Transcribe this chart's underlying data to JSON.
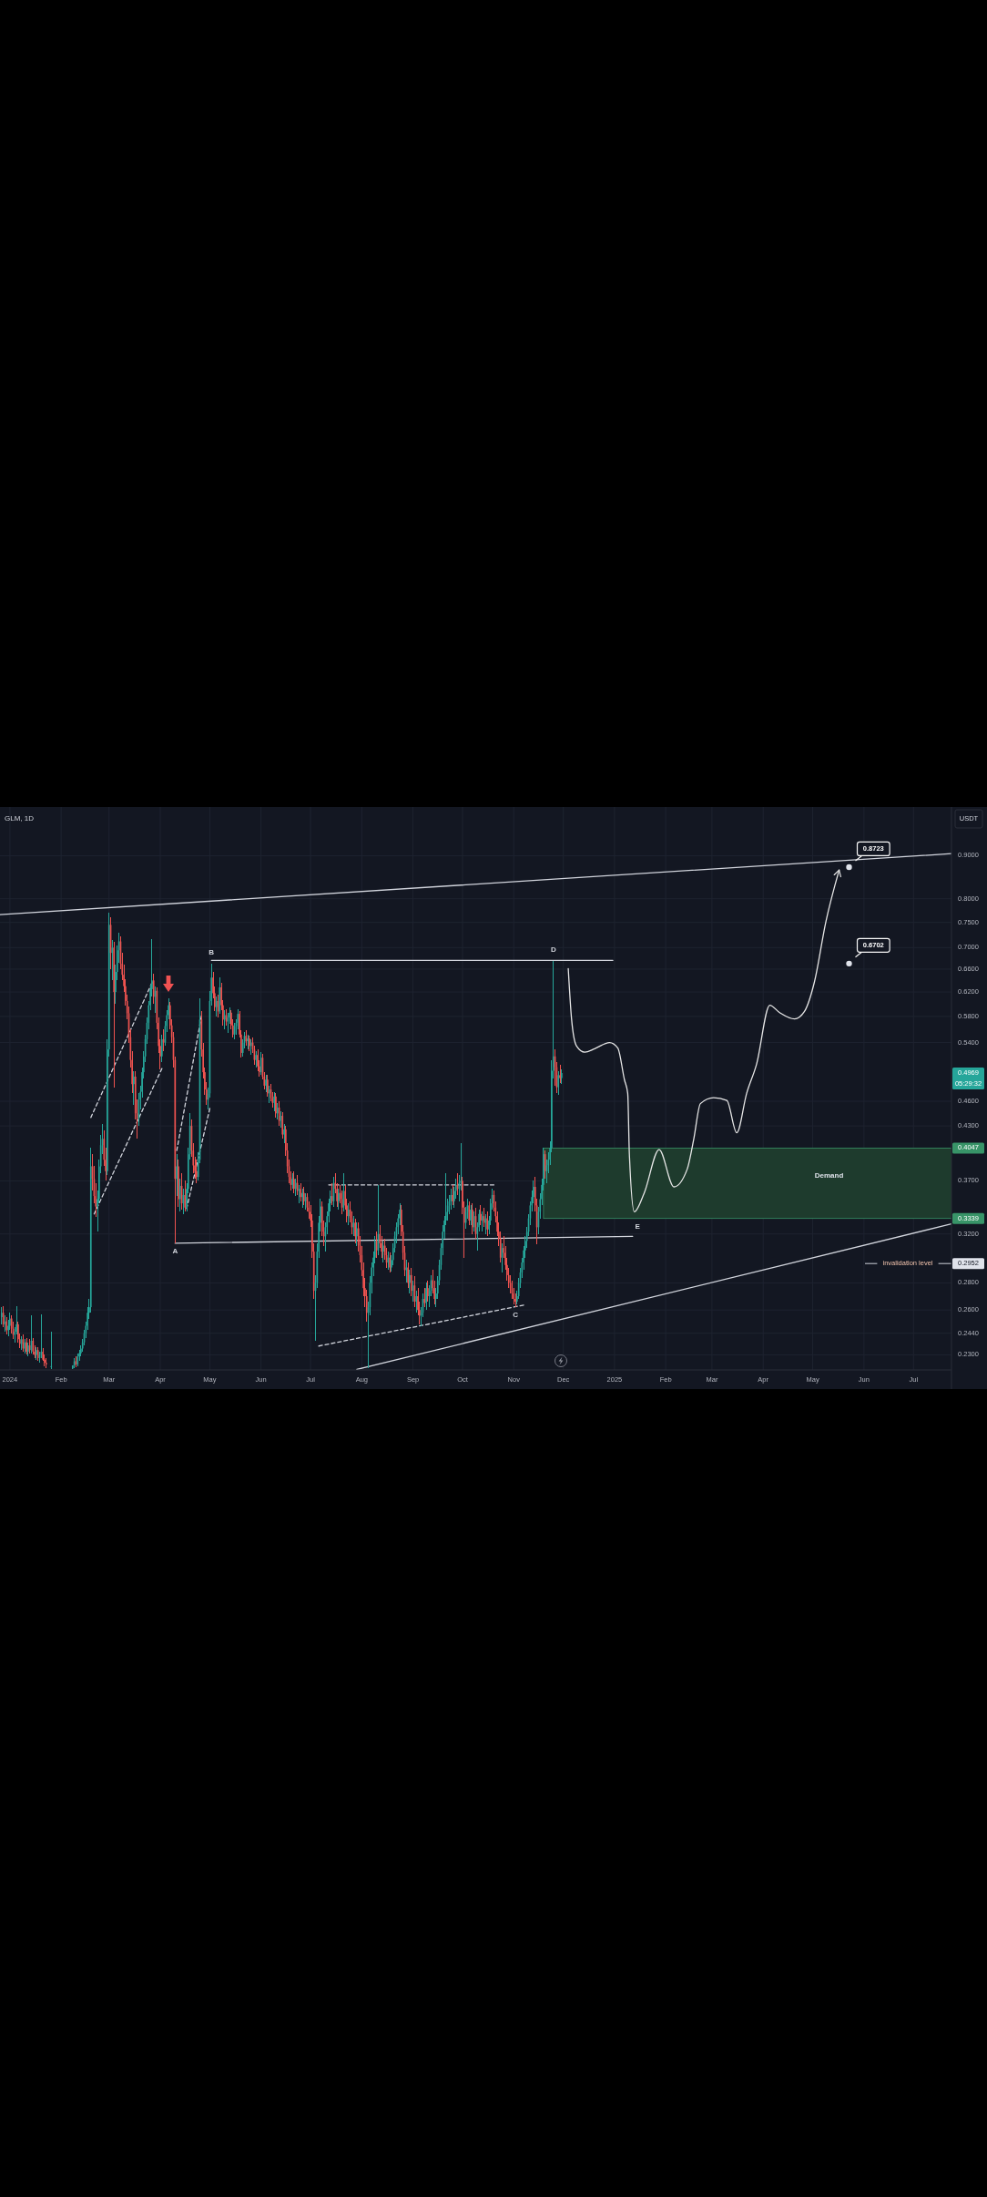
{
  "chart_data": {
    "type": "candlestick",
    "title": "GLM, 1D",
    "ylabel": "USDT",
    "x": [
      "2023-12-27",
      "2023-12-28",
      "2023-12-29",
      "2023-12-30",
      "2023-12-31",
      "2024-01-01",
      "2024-01-02",
      "2024-01-03",
      "2024-01-04",
      "2024-01-05",
      "2024-01-06",
      "2024-01-07",
      "2024-01-08",
      "2024-01-09",
      "2024-01-10",
      "2024-01-11",
      "2024-01-12",
      "2024-01-13",
      "2024-01-14",
      "2024-01-15",
      "2024-01-16",
      "2024-01-17",
      "2024-01-18",
      "2024-01-19",
      "2024-01-20",
      "2024-01-21",
      "2024-01-22",
      "2024-01-23",
      "2024-01-26",
      "2024-02-08",
      "2024-02-09",
      "2024-02-10",
      "2024-02-11",
      "2024-02-12",
      "2024-02-13",
      "2024-02-14",
      "2024-02-15",
      "2024-02-16",
      "2024-02-17",
      "2024-02-18",
      "2024-02-19",
      "2024-02-20",
      "2024-02-21",
      "2024-02-22",
      "2024-02-23",
      "2024-02-24",
      "2024-02-25",
      "2024-02-26",
      "2024-02-27",
      "2024-02-28",
      "2024-02-29",
      "2024-03-01",
      "2024-03-02",
      "2024-03-03",
      "2024-03-04",
      "2024-03-05",
      "2024-03-06",
      "2024-03-07",
      "2024-03-08",
      "2024-03-09",
      "2024-03-10",
      "2024-03-11",
      "2024-03-12",
      "2024-03-13",
      "2024-03-14",
      "2024-03-15",
      "2024-03-16",
      "2024-03-17",
      "2024-03-18",
      "2024-03-19",
      "2024-03-20",
      "2024-03-21",
      "2024-03-22",
      "2024-03-23",
      "2024-03-24",
      "2024-03-25",
      "2024-03-26",
      "2024-03-27",
      "2024-03-28",
      "2024-03-29",
      "2024-03-30",
      "2024-03-31",
      "2024-04-01",
      "2024-04-02",
      "2024-04-03",
      "2024-04-04",
      "2024-04-05",
      "2024-04-06",
      "2024-04-07",
      "2024-04-08",
      "2024-04-09",
      "2024-04-10",
      "2024-04-11",
      "2024-04-12",
      "2024-04-13",
      "2024-04-14",
      "2024-04-15",
      "2024-04-16",
      "2024-04-17",
      "2024-04-18",
      "2024-04-19",
      "2024-04-20",
      "2024-04-21",
      "2024-04-22",
      "2024-04-23",
      "2024-04-24",
      "2024-04-25",
      "2024-04-26",
      "2024-04-27",
      "2024-04-28",
      "2024-04-29",
      "2024-04-30",
      "2024-05-01",
      "2024-05-02",
      "2024-05-03",
      "2024-05-04",
      "2024-05-05",
      "2024-05-06",
      "2024-05-07",
      "2024-05-08",
      "2024-05-09",
      "2024-05-10",
      "2024-05-11",
      "2024-05-12",
      "2024-05-13",
      "2024-05-14",
      "2024-05-15",
      "2024-05-16",
      "2024-05-17",
      "2024-05-18",
      "2024-05-19",
      "2024-05-20",
      "2024-05-21",
      "2024-05-22",
      "2024-05-23",
      "2024-05-24",
      "2024-05-25",
      "2024-05-26",
      "2024-05-27",
      "2024-05-28",
      "2024-05-29",
      "2024-05-30",
      "2024-05-31",
      "2024-06-01",
      "2024-06-02",
      "2024-06-03",
      "2024-06-04",
      "2024-06-05",
      "2024-06-06",
      "2024-06-07",
      "2024-06-08",
      "2024-06-09",
      "2024-06-10",
      "2024-06-11",
      "2024-06-12",
      "2024-06-13",
      "2024-06-14",
      "2024-06-15",
      "2024-06-16",
      "2024-06-17",
      "2024-06-18",
      "2024-06-19",
      "2024-06-20",
      "2024-06-21",
      "2024-06-22",
      "2024-06-23",
      "2024-06-24",
      "2024-06-25",
      "2024-06-26",
      "2024-06-27",
      "2024-06-28",
      "2024-06-29",
      "2024-06-30",
      "2024-07-01",
      "2024-07-02",
      "2024-07-03",
      "2024-07-04",
      "2024-07-05",
      "2024-07-06",
      "2024-07-07",
      "2024-07-08",
      "2024-07-09",
      "2024-07-10",
      "2024-07-11",
      "2024-07-12",
      "2024-07-13",
      "2024-07-14",
      "2024-07-15",
      "2024-07-16",
      "2024-07-17",
      "2024-07-18",
      "2024-07-19",
      "2024-07-20",
      "2024-07-21",
      "2024-07-22",
      "2024-07-23",
      "2024-07-24",
      "2024-07-25",
      "2024-07-26",
      "2024-07-27",
      "2024-07-28",
      "2024-07-29",
      "2024-07-30",
      "2024-07-31",
      "2024-08-01",
      "2024-08-02",
      "2024-08-03",
      "2024-08-04",
      "2024-08-05",
      "2024-08-06",
      "2024-08-07",
      "2024-08-08",
      "2024-08-09",
      "2024-08-10",
      "2024-08-11",
      "2024-08-12",
      "2024-08-13",
      "2024-08-14",
      "2024-08-15",
      "2024-08-16",
      "2024-08-17",
      "2024-08-18",
      "2024-08-19",
      "2024-08-20",
      "2024-08-21",
      "2024-08-22",
      "2024-08-23",
      "2024-08-24",
      "2024-08-25",
      "2024-08-26",
      "2024-08-27",
      "2024-08-28",
      "2024-08-29",
      "2024-08-30",
      "2024-08-31",
      "2024-09-01",
      "2024-09-02",
      "2024-09-03",
      "2024-09-04",
      "2024-09-05",
      "2024-09-06",
      "2024-09-07",
      "2024-09-08",
      "2024-09-09",
      "2024-09-10",
      "2024-09-11",
      "2024-09-12",
      "2024-09-13",
      "2024-09-14",
      "2024-09-15",
      "2024-09-16",
      "2024-09-17",
      "2024-09-18",
      "2024-09-19",
      "2024-09-20",
      "2024-09-21",
      "2024-09-22",
      "2024-09-23",
      "2024-09-24",
      "2024-09-25",
      "2024-09-26",
      "2024-09-27",
      "2024-09-28",
      "2024-09-29",
      "2024-09-30",
      "2024-10-01",
      "2024-10-02",
      "2024-10-03",
      "2024-10-04",
      "2024-10-05",
      "2024-10-06",
      "2024-10-07",
      "2024-10-08",
      "2024-10-09",
      "2024-10-10",
      "2024-10-11",
      "2024-10-12",
      "2024-10-13",
      "2024-10-14",
      "2024-10-15",
      "2024-10-16",
      "2024-10-17",
      "2024-10-18",
      "2024-10-19",
      "2024-10-20",
      "2024-10-21",
      "2024-10-22",
      "2024-10-23",
      "2024-10-24",
      "2024-10-25",
      "2024-10-26",
      "2024-10-27",
      "2024-10-28",
      "2024-10-29",
      "2024-10-30",
      "2024-10-31",
      "2024-11-01",
      "2024-11-02",
      "2024-11-03",
      "2024-11-04",
      "2024-11-05",
      "2024-11-06",
      "2024-11-07",
      "2024-11-08",
      "2024-11-09",
      "2024-11-10",
      "2024-11-11",
      "2024-11-12",
      "2024-11-13",
      "2024-11-14",
      "2024-11-15",
      "2024-11-16",
      "2024-11-17",
      "2024-11-18",
      "2024-11-19",
      "2024-11-20",
      "2024-11-21",
      "2024-11-22",
      "2024-11-23",
      "2024-11-24",
      "2024-11-25",
      "2024-11-26",
      "2024-11-27",
      "2024-11-28",
      "2024-11-29",
      "2024-11-30"
    ],
    "ohlc": [
      [
        0.255,
        0.262,
        0.25,
        0.258
      ],
      [
        0.258,
        0.263,
        0.248,
        0.25
      ],
      [
        0.25,
        0.256,
        0.245,
        0.252
      ],
      [
        0.252,
        0.255,
        0.243,
        0.246
      ],
      [
        0.246,
        0.253,
        0.242,
        0.249
      ],
      [
        0.249,
        0.258,
        0.246,
        0.254
      ],
      [
        0.254,
        0.256,
        0.244,
        0.247
      ],
      [
        0.247,
        0.252,
        0.24,
        0.243
      ],
      [
        0.243,
        0.248,
        0.238,
        0.245
      ],
      [
        0.245,
        0.263,
        0.243,
        0.25
      ],
      [
        0.25,
        0.252,
        0.238,
        0.24
      ],
      [
        0.24,
        0.244,
        0.234,
        0.237
      ],
      [
        0.237,
        0.242,
        0.233,
        0.24
      ],
      [
        0.24,
        0.243,
        0.232,
        0.234
      ],
      [
        0.234,
        0.24,
        0.231,
        0.238
      ],
      [
        0.238,
        0.241,
        0.23,
        0.232
      ],
      [
        0.232,
        0.238,
        0.229,
        0.236
      ],
      [
        0.236,
        0.24,
        0.231,
        0.233
      ],
      [
        0.233,
        0.256,
        0.231,
        0.239
      ],
      [
        0.239,
        0.241,
        0.23,
        0.232
      ],
      [
        0.232,
        0.236,
        0.228,
        0.23
      ],
      [
        0.23,
        0.235,
        0.227,
        0.233
      ],
      [
        0.233,
        0.235,
        0.226,
        0.228
      ],
      [
        0.228,
        0.232,
        0.225,
        0.23
      ],
      [
        0.23,
        0.257,
        0.228,
        0.232
      ],
      [
        0.232,
        0.234,
        0.226,
        0.227
      ],
      [
        0.227,
        0.23,
        0.223,
        0.225
      ],
      [
        0.225,
        0.228,
        0.222,
        0.224
      ],
      [
        0.2225,
        0.245,
        0.2215,
        0.223
      ],
      [
        0.2215,
        0.2235,
        0.2215,
        0.2235
      ],
      [
        0.2235,
        0.228,
        0.222,
        0.226
      ],
      [
        0.226,
        0.229,
        0.2225,
        0.224
      ],
      [
        0.224,
        0.231,
        0.223,
        0.229
      ],
      [
        0.229,
        0.233,
        0.226,
        0.231
      ],
      [
        0.231,
        0.236,
        0.229,
        0.234
      ],
      [
        0.234,
        0.24,
        0.232,
        0.238
      ],
      [
        0.238,
        0.246,
        0.236,
        0.244
      ],
      [
        0.244,
        0.252,
        0.241,
        0.249
      ],
      [
        0.249,
        0.262,
        0.246,
        0.258
      ],
      [
        0.258,
        0.268,
        0.254,
        0.262
      ],
      [
        0.262,
        0.405,
        0.258,
        0.385
      ],
      [
        0.385,
        0.398,
        0.36,
        0.372
      ],
      [
        0.372,
        0.385,
        0.348,
        0.355
      ],
      [
        0.355,
        0.368,
        0.335,
        0.345
      ],
      [
        0.345,
        0.36,
        0.322,
        0.352
      ],
      [
        0.352,
        0.392,
        0.348,
        0.385
      ],
      [
        0.385,
        0.42,
        0.378,
        0.408
      ],
      [
        0.408,
        0.432,
        0.398,
        0.415
      ],
      [
        0.415,
        0.425,
        0.385,
        0.392
      ],
      [
        0.392,
        0.405,
        0.37,
        0.38
      ],
      [
        0.38,
        0.545,
        0.376,
        0.53
      ],
      [
        0.53,
        0.771,
        0.52,
        0.745
      ],
      [
        0.745,
        0.76,
        0.66,
        0.69
      ],
      [
        0.69,
        0.715,
        0.64,
        0.7
      ],
      [
        0.7,
        0.712,
        0.477,
        0.62
      ],
      [
        0.62,
        0.668,
        0.6,
        0.655
      ],
      [
        0.655,
        0.705,
        0.64,
        0.695
      ],
      [
        0.695,
        0.73,
        0.672,
        0.712
      ],
      [
        0.712,
        0.722,
        0.66,
        0.67
      ],
      [
        0.67,
        0.69,
        0.64,
        0.65
      ],
      [
        0.65,
        0.668,
        0.62,
        0.63
      ],
      [
        0.63,
        0.642,
        0.598,
        0.605
      ],
      [
        0.605,
        0.615,
        0.575,
        0.585
      ],
      [
        0.585,
        0.596,
        0.54,
        0.548
      ],
      [
        0.548,
        0.56,
        0.505,
        0.515
      ],
      [
        0.515,
        0.528,
        0.47,
        0.482
      ],
      [
        0.482,
        0.5,
        0.455,
        0.492
      ],
      [
        0.492,
        0.5,
        0.438,
        0.445
      ],
      [
        0.445,
        0.462,
        0.415,
        0.438
      ],
      [
        0.438,
        0.47,
        0.43,
        0.462
      ],
      [
        0.462,
        0.48,
        0.45,
        0.472
      ],
      [
        0.472,
        0.505,
        0.465,
        0.498
      ],
      [
        0.498,
        0.528,
        0.49,
        0.52
      ],
      [
        0.52,
        0.552,
        0.512,
        0.545
      ],
      [
        0.545,
        0.578,
        0.538,
        0.57
      ],
      [
        0.57,
        0.605,
        0.56,
        0.598
      ],
      [
        0.598,
        0.632,
        0.59,
        0.625
      ],
      [
        0.625,
        0.716,
        0.612,
        0.64
      ],
      [
        0.64,
        0.652,
        0.6,
        0.612
      ],
      [
        0.612,
        0.63,
        0.585,
        0.622
      ],
      [
        0.622,
        0.628,
        0.56,
        0.57
      ],
      [
        0.57,
        0.578,
        0.525,
        0.535
      ],
      [
        0.535,
        0.545,
        0.502,
        0.52
      ],
      [
        0.52,
        0.552,
        0.512,
        0.545
      ],
      [
        0.545,
        0.56,
        0.528,
        0.54
      ],
      [
        0.54,
        0.572,
        0.535,
        0.565
      ],
      [
        0.565,
        0.59,
        0.556,
        0.582
      ],
      [
        0.582,
        0.61,
        0.575,
        0.598
      ],
      [
        0.598,
        0.604,
        0.56,
        0.566
      ],
      [
        0.566,
        0.575,
        0.54,
        0.548
      ],
      [
        0.548,
        0.556,
        0.505,
        0.515
      ],
      [
        0.515,
        0.52,
        0.312,
        0.372
      ],
      [
        0.372,
        0.398,
        0.355,
        0.385
      ],
      [
        0.385,
        0.392,
        0.345,
        0.352
      ],
      [
        0.352,
        0.372,
        0.34,
        0.365
      ],
      [
        0.365,
        0.378,
        0.342,
        0.348
      ],
      [
        0.348,
        0.362,
        0.338,
        0.356
      ],
      [
        0.356,
        0.37,
        0.34,
        0.344
      ],
      [
        0.344,
        0.368,
        0.34,
        0.362
      ],
      [
        0.362,
        0.405,
        0.358,
        0.398
      ],
      [
        0.398,
        0.445,
        0.392,
        0.43
      ],
      [
        0.43,
        0.438,
        0.395,
        0.402
      ],
      [
        0.402,
        0.41,
        0.378,
        0.386
      ],
      [
        0.386,
        0.395,
        0.372,
        0.38
      ],
      [
        0.38,
        0.392,
        0.368,
        0.374
      ],
      [
        0.374,
        0.4,
        0.37,
        0.392
      ],
      [
        0.392,
        0.61,
        0.388,
        0.575
      ],
      [
        0.575,
        0.588,
        0.52,
        0.53
      ],
      [
        0.53,
        0.54,
        0.49,
        0.498
      ],
      [
        0.498,
        0.505,
        0.468,
        0.475
      ],
      [
        0.475,
        0.485,
        0.455,
        0.462
      ],
      [
        0.462,
        0.478,
        0.45,
        0.47
      ],
      [
        0.47,
        0.622,
        0.465,
        0.605
      ],
      [
        0.605,
        0.67,
        0.598,
        0.645
      ],
      [
        0.645,
        0.655,
        0.61,
        0.618
      ],
      [
        0.618,
        0.63,
        0.588,
        0.595
      ],
      [
        0.595,
        0.612,
        0.58,
        0.605
      ],
      [
        0.605,
        0.615,
        0.578,
        0.588
      ],
      [
        0.588,
        0.645,
        0.584,
        0.628
      ],
      [
        0.628,
        0.636,
        0.59,
        0.598
      ],
      [
        0.598,
        0.606,
        0.565,
        0.575
      ],
      [
        0.575,
        0.59,
        0.56,
        0.582
      ],
      [
        0.582,
        0.592,
        0.566,
        0.572
      ],
      [
        0.572,
        0.585,
        0.555,
        0.578
      ],
      [
        0.578,
        0.594,
        0.568,
        0.586
      ],
      [
        0.586,
        0.59,
        0.56,
        0.566
      ],
      [
        0.566,
        0.575,
        0.548,
        0.552
      ],
      [
        0.552,
        0.57,
        0.545,
        0.565
      ],
      [
        0.565,
        0.575,
        0.552,
        0.57
      ],
      [
        0.57,
        0.592,
        0.56,
        0.584
      ],
      [
        0.584,
        0.588,
        0.548,
        0.552
      ],
      [
        0.552,
        0.558,
        0.518,
        0.525
      ],
      [
        0.525,
        0.545,
        0.52,
        0.54
      ],
      [
        0.54,
        0.556,
        0.532,
        0.55
      ],
      [
        0.55,
        0.558,
        0.536,
        0.542
      ],
      [
        0.542,
        0.552,
        0.53,
        0.546
      ],
      [
        0.546,
        0.55,
        0.528,
        0.535
      ],
      [
        0.535,
        0.545,
        0.522,
        0.54
      ],
      [
        0.54,
        0.548,
        0.525,
        0.53
      ],
      [
        0.53,
        0.535,
        0.508,
        0.515
      ],
      [
        0.515,
        0.528,
        0.505,
        0.522
      ],
      [
        0.522,
        0.53,
        0.5,
        0.506
      ],
      [
        0.506,
        0.515,
        0.492,
        0.498
      ],
      [
        0.498,
        0.526,
        0.494,
        0.518
      ],
      [
        0.518,
        0.524,
        0.488,
        0.492
      ],
      [
        0.492,
        0.498,
        0.475,
        0.48
      ],
      [
        0.48,
        0.495,
        0.472,
        0.488
      ],
      [
        0.488,
        0.494,
        0.466,
        0.47
      ],
      [
        0.47,
        0.48,
        0.458,
        0.475
      ],
      [
        0.475,
        0.482,
        0.46,
        0.464
      ],
      [
        0.464,
        0.472,
        0.452,
        0.458
      ],
      [
        0.458,
        0.472,
        0.448,
        0.466
      ],
      [
        0.466,
        0.47,
        0.44,
        0.445
      ],
      [
        0.445,
        0.458,
        0.438,
        0.452
      ],
      [
        0.452,
        0.46,
        0.43,
        0.436
      ],
      [
        0.436,
        0.448,
        0.428,
        0.442
      ],
      [
        0.442,
        0.446,
        0.415,
        0.42
      ],
      [
        0.42,
        0.432,
        0.41,
        0.426
      ],
      [
        0.426,
        0.43,
        0.396,
        0.402
      ],
      [
        0.402,
        0.41,
        0.378,
        0.385
      ],
      [
        0.385,
        0.392,
        0.368,
        0.374
      ],
      [
        0.374,
        0.38,
        0.36,
        0.366
      ],
      [
        0.366,
        0.378,
        0.362,
        0.372
      ],
      [
        0.372,
        0.38,
        0.358,
        0.362
      ],
      [
        0.362,
        0.372,
        0.355,
        0.368
      ],
      [
        0.368,
        0.376,
        0.356,
        0.36
      ],
      [
        0.36,
        0.366,
        0.348,
        0.362
      ],
      [
        0.362,
        0.368,
        0.35,
        0.354
      ],
      [
        0.354,
        0.362,
        0.344,
        0.358
      ],
      [
        0.358,
        0.364,
        0.346,
        0.35
      ],
      [
        0.35,
        0.358,
        0.342,
        0.354
      ],
      [
        0.354,
        0.358,
        0.34,
        0.344
      ],
      [
        0.344,
        0.35,
        0.334,
        0.34
      ],
      [
        0.34,
        0.346,
        0.326,
        0.332
      ],
      [
        0.332,
        0.338,
        0.3,
        0.305
      ],
      [
        0.305,
        0.312,
        0.268,
        0.274
      ],
      [
        0.274,
        0.286,
        0.239,
        0.28
      ],
      [
        0.28,
        0.312,
        0.276,
        0.305
      ],
      [
        0.305,
        0.336,
        0.3,
        0.33
      ],
      [
        0.33,
        0.352,
        0.322,
        0.345
      ],
      [
        0.345,
        0.35,
        0.318,
        0.322
      ],
      [
        0.322,
        0.332,
        0.31,
        0.318
      ],
      [
        0.318,
        0.33,
        0.305,
        0.326
      ],
      [
        0.326,
        0.34,
        0.32,
        0.336
      ],
      [
        0.336,
        0.352,
        0.33,
        0.348
      ],
      [
        0.348,
        0.36,
        0.34,
        0.355
      ],
      [
        0.355,
        0.368,
        0.346,
        0.35
      ],
      [
        0.35,
        0.374,
        0.345,
        0.368
      ],
      [
        0.368,
        0.378,
        0.358,
        0.362
      ],
      [
        0.362,
        0.368,
        0.345,
        0.35
      ],
      [
        0.35,
        0.362,
        0.342,
        0.358
      ],
      [
        0.358,
        0.366,
        0.348,
        0.352
      ],
      [
        0.352,
        0.36,
        0.338,
        0.344
      ],
      [
        0.344,
        0.378,
        0.34,
        0.36
      ],
      [
        0.36,
        0.366,
        0.342,
        0.346
      ],
      [
        0.346,
        0.352,
        0.33,
        0.336
      ],
      [
        0.336,
        0.348,
        0.328,
        0.342
      ],
      [
        0.342,
        0.35,
        0.33,
        0.334
      ],
      [
        0.334,
        0.34,
        0.32,
        0.326
      ],
      [
        0.326,
        0.336,
        0.318,
        0.33
      ],
      [
        0.33,
        0.334,
        0.312,
        0.318
      ],
      [
        0.318,
        0.33,
        0.31,
        0.325
      ],
      [
        0.325,
        0.33,
        0.305,
        0.31
      ],
      [
        0.31,
        0.318,
        0.296,
        0.302
      ],
      [
        0.302,
        0.31,
        0.285,
        0.29
      ],
      [
        0.29,
        0.296,
        0.27,
        0.276
      ],
      [
        0.276,
        0.284,
        0.262,
        0.27
      ],
      [
        0.27,
        0.275,
        0.252,
        0.258
      ],
      [
        0.258,
        0.266,
        0.222,
        0.262
      ],
      [
        0.262,
        0.285,
        0.256,
        0.28
      ],
      [
        0.28,
        0.296,
        0.272,
        0.292
      ],
      [
        0.292,
        0.305,
        0.285,
        0.3
      ],
      [
        0.3,
        0.318,
        0.295,
        0.314
      ],
      [
        0.314,
        0.322,
        0.3,
        0.306
      ],
      [
        0.306,
        0.366,
        0.302,
        0.32
      ],
      [
        0.32,
        0.328,
        0.308,
        0.312
      ],
      [
        0.312,
        0.318,
        0.3,
        0.305
      ],
      [
        0.305,
        0.314,
        0.296,
        0.31
      ],
      [
        0.31,
        0.316,
        0.298,
        0.302
      ],
      [
        0.302,
        0.308,
        0.292,
        0.296
      ],
      [
        0.296,
        0.305,
        0.29,
        0.3
      ],
      [
        0.3,
        0.304,
        0.288,
        0.292
      ],
      [
        0.292,
        0.302,
        0.289,
        0.298
      ],
      [
        0.298,
        0.312,
        0.294,
        0.308
      ],
      [
        0.308,
        0.322,
        0.304,
        0.318
      ],
      [
        0.318,
        0.33,
        0.312,
        0.326
      ],
      [
        0.326,
        0.338,
        0.32,
        0.334
      ],
      [
        0.334,
        0.348,
        0.328,
        0.342
      ],
      [
        0.342,
        0.346,
        0.318,
        0.322
      ],
      [
        0.322,
        0.328,
        0.298,
        0.304
      ],
      [
        0.304,
        0.31,
        0.285,
        0.29
      ],
      [
        0.29,
        0.298,
        0.28,
        0.292
      ],
      [
        0.292,
        0.296,
        0.276,
        0.28
      ],
      [
        0.28,
        0.29,
        0.272,
        0.286
      ],
      [
        0.286,
        0.292,
        0.27,
        0.274
      ],
      [
        0.274,
        0.282,
        0.266,
        0.278
      ],
      [
        0.278,
        0.285,
        0.262,
        0.266
      ],
      [
        0.266,
        0.274,
        0.258,
        0.27
      ],
      [
        0.27,
        0.276,
        0.256,
        0.26
      ],
      [
        0.26,
        0.266,
        0.25,
        0.256
      ],
      [
        0.256,
        0.262,
        0.249,
        0.258
      ],
      [
        0.258,
        0.272,
        0.255,
        0.268
      ],
      [
        0.268,
        0.276,
        0.262,
        0.265
      ],
      [
        0.265,
        0.28,
        0.26,
        0.276
      ],
      [
        0.276,
        0.282,
        0.266,
        0.27
      ],
      [
        0.27,
        0.278,
        0.262,
        0.274
      ],
      [
        0.274,
        0.286,
        0.27,
        0.282
      ],
      [
        0.282,
        0.29,
        0.272,
        0.276
      ],
      [
        0.276,
        0.282,
        0.264,
        0.268
      ],
      [
        0.268,
        0.276,
        0.262,
        0.272
      ],
      [
        0.272,
        0.285,
        0.268,
        0.282
      ],
      [
        0.282,
        0.298,
        0.278,
        0.294
      ],
      [
        0.294,
        0.312,
        0.29,
        0.308
      ],
      [
        0.308,
        0.328,
        0.302,
        0.322
      ],
      [
        0.322,
        0.336,
        0.316,
        0.332
      ],
      [
        0.332,
        0.378,
        0.328,
        0.34
      ],
      [
        0.34,
        0.352,
        0.332,
        0.346
      ],
      [
        0.346,
        0.356,
        0.338,
        0.35
      ],
      [
        0.35,
        0.362,
        0.342,
        0.356
      ],
      [
        0.356,
        0.366,
        0.346,
        0.35
      ],
      [
        0.35,
        0.364,
        0.344,
        0.36
      ],
      [
        0.36,
        0.372,
        0.352,
        0.366
      ],
      [
        0.366,
        0.378,
        0.356,
        0.362
      ],
      [
        0.362,
        0.376,
        0.35,
        0.368
      ],
      [
        0.368,
        0.41,
        0.36,
        0.37
      ],
      [
        0.37,
        0.374,
        0.338,
        0.344
      ],
      [
        0.344,
        0.35,
        0.3,
        0.33
      ],
      [
        0.33,
        0.345,
        0.325,
        0.34
      ],
      [
        0.34,
        0.352,
        0.334,
        0.346
      ],
      [
        0.346,
        0.35,
        0.328,
        0.332
      ],
      [
        0.332,
        0.346,
        0.328,
        0.342
      ],
      [
        0.342,
        0.348,
        0.32,
        0.326
      ],
      [
        0.326,
        0.34,
        0.322,
        0.336
      ],
      [
        0.336,
        0.344,
        0.316,
        0.32
      ],
      [
        0.32,
        0.33,
        0.306,
        0.326
      ],
      [
        0.326,
        0.342,
        0.322,
        0.338
      ],
      [
        0.338,
        0.346,
        0.328,
        0.332
      ],
      [
        0.332,
        0.34,
        0.322,
        0.336
      ],
      [
        0.336,
        0.344,
        0.326,
        0.33
      ],
      [
        0.33,
        0.338,
        0.32,
        0.334
      ],
      [
        0.334,
        0.34,
        0.318,
        0.324
      ],
      [
        0.324,
        0.336,
        0.32,
        0.332
      ],
      [
        0.332,
        0.352,
        0.328,
        0.348
      ],
      [
        0.348,
        0.362,
        0.342,
        0.356
      ],
      [
        0.356,
        0.36,
        0.34,
        0.344
      ],
      [
        0.344,
        0.35,
        0.33,
        0.336
      ],
      [
        0.336,
        0.34,
        0.318,
        0.322
      ],
      [
        0.322,
        0.33,
        0.31,
        0.316
      ],
      [
        0.316,
        0.322,
        0.296,
        0.3
      ],
      [
        0.3,
        0.312,
        0.288,
        0.308
      ],
      [
        0.308,
        0.318,
        0.3,
        0.304
      ],
      [
        0.304,
        0.31,
        0.29,
        0.294
      ],
      [
        0.294,
        0.3,
        0.282,
        0.286
      ],
      [
        0.286,
        0.292,
        0.276,
        0.28
      ],
      [
        0.28,
        0.286,
        0.272,
        0.276
      ],
      [
        0.276,
        0.282,
        0.268,
        0.272
      ],
      [
        0.272,
        0.276,
        0.264,
        0.268
      ],
      [
        0.268,
        0.272,
        0.262,
        0.266
      ],
      [
        0.266,
        0.274,
        0.264,
        0.27
      ],
      [
        0.27,
        0.284,
        0.268,
        0.28
      ],
      [
        0.28,
        0.292,
        0.276,
        0.288
      ],
      [
        0.288,
        0.3,
        0.284,
        0.296
      ],
      [
        0.296,
        0.31,
        0.29,
        0.306
      ],
      [
        0.306,
        0.318,
        0.3,
        0.314
      ],
      [
        0.314,
        0.326,
        0.308,
        0.322
      ],
      [
        0.322,
        0.338,
        0.318,
        0.334
      ],
      [
        0.334,
        0.35,
        0.328,
        0.346
      ],
      [
        0.346,
        0.36,
        0.34,
        0.354
      ],
      [
        0.354,
        0.37,
        0.348,
        0.364
      ],
      [
        0.364,
        0.374,
        0.34,
        0.346
      ],
      [
        0.346,
        0.352,
        0.311,
        0.326
      ],
      [
        0.326,
        0.345,
        0.32,
        0.34
      ],
      [
        0.34,
        0.358,
        0.334,
        0.352
      ],
      [
        0.352,
        0.372,
        0.346,
        0.366
      ],
      [
        0.366,
        0.405,
        0.36,
        0.398
      ],
      [
        0.398,
        0.402,
        0.372,
        0.38
      ],
      [
        0.38,
        0.392,
        0.368,
        0.386
      ],
      [
        0.386,
        0.4,
        0.378,
        0.392
      ],
      [
        0.392,
        0.412,
        0.386,
        0.405
      ],
      [
        0.405,
        0.515,
        0.4,
        0.5
      ],
      [
        0.5,
        0.675,
        0.49,
        0.52
      ],
      [
        0.52,
        0.53,
        0.48,
        0.505
      ],
      [
        0.505,
        0.512,
        0.47,
        0.478
      ],
      [
        0.478,
        0.5,
        0.468,
        0.494
      ],
      [
        0.494,
        0.508,
        0.484,
        0.49
      ],
      [
        0.49,
        0.502,
        0.482,
        0.4969
      ]
    ],
    "series": [
      {
        "type": "line",
        "x": [
          "2023-12-26",
          "2025-07-24"
        ],
        "values": [
          0.766,
          0.905
        ],
        "color": "#d1d4dc",
        "line_style": "solid"
      },
      {
        "type": "line",
        "x": [
          "2024-05-02",
          "2024-12-31"
        ],
        "values": [
          0.676,
          0.676
        ],
        "color": "#d1d4dc",
        "line_style": "solid"
      },
      {
        "type": "line",
        "x": [
          "2024-04-10",
          "2025-01-12"
        ],
        "values": [
          0.312,
          0.318
        ],
        "color": "#d1d4dc",
        "line_style": "solid"
      },
      {
        "type": "line",
        "x": [
          "2024-07-29",
          "2025-07-24"
        ],
        "values": [
          0.221,
          0.329
        ],
        "color": "#d1d4dc",
        "line_style": "solid"
      },
      {
        "type": "line",
        "x": [
          "2024-02-19",
          "2024-03-27"
        ],
        "values": [
          0.44,
          0.636
        ],
        "color": "#d1d4dc",
        "line_style": "dashed"
      },
      {
        "type": "line",
        "x": [
          "2024-02-21",
          "2024-04-02"
        ],
        "values": [
          0.338,
          0.503
        ],
        "color": "#d1d4dc",
        "line_style": "dashed"
      },
      {
        "type": "line",
        "x": [
          "2024-04-11",
          "2024-04-26"
        ],
        "values": [
          0.402,
          0.581
        ],
        "color": "#d1d4dc",
        "line_style": "dashed"
      },
      {
        "type": "line",
        "x": [
          "2024-04-17",
          "2024-05-01"
        ],
        "values": [
          0.343,
          0.451
        ],
        "color": "#d1d4dc",
        "line_style": "dashed"
      },
      {
        "type": "line",
        "x": [
          "2024-07-12",
          "2024-10-20"
        ],
        "values": [
          0.366,
          0.366
        ],
        "color": "#d1d4dc",
        "line_style": "dashed"
      },
      {
        "type": "line",
        "x": [
          "2024-07-06",
          "2024-11-07"
        ],
        "values": [
          0.2356,
          0.2635
        ],
        "color": "#d1d4dc",
        "line_style": "dashed"
      },
      {
        "type": "line",
        "x": [
          "2024-12-04",
          "2024-12-06",
          "2024-12-09",
          "2024-12-14",
          "2024-12-20",
          "2024-12-29",
          "2025-01-03",
          "2025-01-07",
          "2025-01-09",
          "2025-01-10",
          "2025-01-13",
          "2025-01-19",
          "2025-01-28",
          "2025-02-06",
          "2025-02-14",
          "2025-02-18",
          "2025-02-22",
          "2025-03-02",
          "2025-03-10",
          "2025-03-16",
          "2025-03-22",
          "2025-03-28",
          "2025-04-05",
          "2025-04-11",
          "2025-04-20",
          "2025-04-26",
          "2025-05-02",
          "2025-05-09",
          "2025-05-17"
        ],
        "values": [
          0.661,
          0.576,
          0.535,
          0.526,
          0.531,
          0.54,
          0.532,
          0.488,
          0.47,
          0.398,
          0.34,
          0.358,
          0.403,
          0.364,
          0.382,
          0.415,
          0.457,
          0.4645,
          0.461,
          0.422,
          0.47,
          0.509,
          0.598,
          0.586,
          0.576,
          0.588,
          0.637,
          0.752,
          0.8655
        ],
        "color": "#e6e6e6",
        "line_style": "solid"
      },
      {
        "type": "scatter",
        "x": [
          "2025-05-23",
          "2025-05-23"
        ],
        "values": [
          0.8723,
          0.6702
        ],
        "color": "#e0e3eb",
        "marker": "circle",
        "value_labels": [
          "0.8723",
          "0.6702"
        ]
      }
    ],
    "xlim": [
      "2023-12-26",
      "2025-07-24"
    ],
    "xticks": [
      {
        "value": "2024-01-01",
        "label": "2024"
      },
      {
        "value": "2024-02-01",
        "label": "Feb"
      },
      {
        "value": "2024-03-01",
        "label": "Mar"
      },
      {
        "value": "2024-04-01",
        "label": "Apr"
      },
      {
        "value": "2024-05-01",
        "label": "May"
      },
      {
        "value": "2024-06-01",
        "label": "Jun"
      },
      {
        "value": "2024-07-01",
        "label": "Jul"
      },
      {
        "value": "2024-08-01",
        "label": "Aug"
      },
      {
        "value": "2024-09-01",
        "label": "Sep"
      },
      {
        "value": "2024-10-01",
        "label": "Oct"
      },
      {
        "value": "2024-11-01",
        "label": "Nov"
      },
      {
        "value": "2024-12-01",
        "label": "Dec"
      },
      {
        "value": "2025-01-01",
        "label": "2025"
      },
      {
        "value": "2025-02-01",
        "label": "Feb"
      },
      {
        "value": "2025-03-01",
        "label": "Mar"
      },
      {
        "value": "2025-04-01",
        "label": "Apr"
      },
      {
        "value": "2025-05-01",
        "label": "May"
      },
      {
        "value": "2025-06-01",
        "label": "Jun"
      },
      {
        "value": "2025-07-01",
        "label": "Jul"
      }
    ],
    "ylim": [
      0.2207,
      1.028
    ],
    "yticks": [
      {
        "value": 0.9,
        "label": "0.9000"
      },
      {
        "value": 0.8,
        "label": "0.8000"
      },
      {
        "value": 0.75,
        "label": "0.7500"
      },
      {
        "value": 0.7,
        "label": "0.7000"
      },
      {
        "value": 0.66,
        "label": "0.6600"
      },
      {
        "value": 0.62,
        "label": "0.6200"
      },
      {
        "value": 0.58,
        "label": "0.5800"
      },
      {
        "value": 0.54,
        "label": "0.5400"
      },
      0.4969,
      {
        "value": 0.46,
        "label": "0.4600"
      },
      {
        "value": 0.43,
        "label": "0.4300"
      },
      0.4047,
      {
        "value": 0.37,
        "label": "0.3700"
      },
      0.3339,
      {
        "value": 0.32,
        "label": "0.3200"
      },
      0.2952,
      {
        "value": 0.28,
        "label": "0.2800"
      },
      {
        "value": 0.26,
        "label": "0.2600"
      },
      {
        "value": 0.244,
        "label": "0.2440"
      },
      {
        "value": 0.23,
        "label": "0.2300"
      }
    ],
    "log": true,
    "grid": true,
    "bands": [
      {
        "axis": "y",
        "from": 0.3339,
        "to": 0.4047,
        "label": "Demand",
        "color": "#1e3b2d"
      }
    ],
    "ref_lines": [
      {
        "axis": "y",
        "value": 0.2952,
        "label": "invalidation level",
        "color": "#d1d4dc"
      }
    ],
    "annotations": [
      {
        "text": "A",
        "x": "2024-04-10",
        "y": 0.312
      },
      {
        "text": "B",
        "x": "2024-05-02",
        "y": 0.67
      },
      {
        "text": "C",
        "x": "2024-11-02",
        "y": 0.262
      },
      {
        "text": "D",
        "x": "2024-11-25",
        "y": 0.675
      },
      {
        "text": "E",
        "x": "2025-01-15",
        "y": 0.3339
      },
      "05:29:32"
    ]
  }
}
